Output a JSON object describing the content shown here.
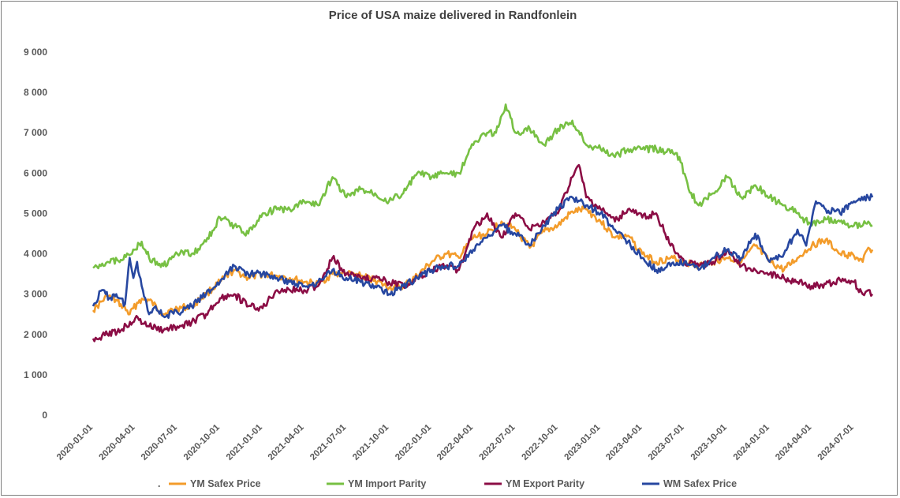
{
  "chart_data": {
    "type": "line",
    "title": "Price of USA maize delivered in Randfonlein",
    "xlabel": "",
    "ylabel": "",
    "ylim": [
      0,
      9000
    ],
    "yticks": [
      0,
      1000,
      2000,
      3000,
      4000,
      5000,
      6000,
      7000,
      8000,
      9000
    ],
    "ytick_labels": [
      "0",
      "1 000",
      "2 000",
      "3 000",
      "4 000",
      "5 000",
      "6 000",
      "7 000",
      "8 000",
      "9 000"
    ],
    "xrange": [
      "2020-01-01",
      "2024-08-15"
    ],
    "xtick_labels": [
      "2020-01-01",
      "2020-04-01",
      "2020-07-01",
      "2020-10-01",
      "2021-01-01",
      "2021-04-01",
      "2021-07-01",
      "2021-10-01",
      "2022-01-01",
      "2022-04-01",
      "2022-07-01",
      "2022-10-01",
      "2023-01-01",
      "2023-04-01",
      "2023-07-01",
      "2023-10-01",
      "2024-01-01",
      "2024-04-01",
      "2024-07-01"
    ],
    "grid": false,
    "legend_position": "bottom",
    "legend_marker": ".",
    "series": [
      {
        "name": "YM Safex Price",
        "color": "#f39c2b",
        "x": [
          "2020-01-01",
          "2020-02-01",
          "2020-03-01",
          "2020-03-20",
          "2020-04-10",
          "2020-05-01",
          "2020-06-01",
          "2020-07-01",
          "2020-08-01",
          "2020-09-01",
          "2020-10-01",
          "2020-11-01",
          "2020-12-01",
          "2021-01-01",
          "2021-02-01",
          "2021-03-01",
          "2021-04-01",
          "2021-05-01",
          "2021-06-01",
          "2021-07-01",
          "2021-08-01",
          "2021-09-01",
          "2021-10-01",
          "2021-11-01",
          "2021-12-01",
          "2022-01-01",
          "2022-02-01",
          "2022-03-01",
          "2022-04-01",
          "2022-05-01",
          "2022-06-01",
          "2022-07-01",
          "2022-08-01",
          "2022-09-01",
          "2022-10-01",
          "2022-11-01",
          "2022-12-01",
          "2023-01-01",
          "2023-02-01",
          "2023-03-01",
          "2023-04-01",
          "2023-05-01",
          "2023-06-01",
          "2023-07-01",
          "2023-08-01",
          "2023-09-01",
          "2023-10-01",
          "2023-11-01",
          "2023-12-01",
          "2024-01-01",
          "2024-02-01",
          "2024-03-01",
          "2024-04-01",
          "2024-05-01",
          "2024-06-01",
          "2024-07-01",
          "2024-07-20",
          "2024-08-01",
          "2024-08-10"
        ],
        "values": [
          2600,
          2950,
          2750,
          2500,
          2850,
          2850,
          2500,
          2650,
          2700,
          3000,
          3300,
          3600,
          3400,
          3500,
          3450,
          3400,
          3300,
          3250,
          3500,
          3500,
          3450,
          3350,
          3150,
          3200,
          3450,
          3800,
          4000,
          3900,
          4400,
          4500,
          4800,
          4600,
          4150,
          4550,
          4700,
          5050,
          5100,
          4800,
          4400,
          4450,
          4000,
          3800,
          3900,
          3800,
          3700,
          3800,
          3900,
          3800,
          4200,
          3800,
          3600,
          3900,
          4200,
          4350,
          4000,
          3950,
          3800,
          4150,
          4100
        ]
      },
      {
        "name": "YM Import Parity",
        "color": "#77c043",
        "x": [
          "2020-01-01",
          "2020-02-01",
          "2020-03-01",
          "2020-03-25",
          "2020-04-15",
          "2020-05-01",
          "2020-06-01",
          "2020-07-01",
          "2020-08-01",
          "2020-09-01",
          "2020-10-01",
          "2020-11-01",
          "2020-12-01",
          "2021-01-01",
          "2021-02-01",
          "2021-03-01",
          "2021-04-01",
          "2021-05-01",
          "2021-06-01",
          "2021-07-01",
          "2021-08-01",
          "2021-09-01",
          "2021-10-01",
          "2021-11-01",
          "2021-12-01",
          "2022-01-01",
          "2022-02-01",
          "2022-03-01",
          "2022-04-01",
          "2022-05-01",
          "2022-05-20",
          "2022-06-10",
          "2022-07-01",
          "2022-08-01",
          "2022-09-01",
          "2022-10-01",
          "2022-11-01",
          "2022-12-01",
          "2023-01-01",
          "2023-02-01",
          "2023-03-01",
          "2023-04-01",
          "2023-05-01",
          "2023-06-01",
          "2023-06-20",
          "2023-07-10",
          "2023-08-01",
          "2023-09-01",
          "2023-10-01",
          "2023-11-01",
          "2023-12-01",
          "2024-01-01",
          "2024-02-01",
          "2024-03-01",
          "2024-04-01",
          "2024-05-01",
          "2024-06-01",
          "2024-07-01",
          "2024-08-01",
          "2024-08-10"
        ],
        "values": [
          3650,
          3800,
          3850,
          4000,
          4300,
          3900,
          3700,
          4000,
          4000,
          4300,
          4900,
          4700,
          4500,
          5000,
          5100,
          5100,
          5300,
          5200,
          5900,
          5400,
          5600,
          5500,
          5300,
          5500,
          6000,
          5900,
          6000,
          6000,
          6700,
          7000,
          7000,
          7700,
          7000,
          7100,
          6700,
          7100,
          7300,
          6700,
          6600,
          6400,
          6600,
          6600,
          6600,
          6500,
          6400,
          5600,
          5200,
          5500,
          5900,
          5400,
          5700,
          5400,
          5200,
          5000,
          4700,
          4850,
          4800,
          4700,
          4800,
          4700
        ]
      },
      {
        "name": "YM Export Parity",
        "color": "#8b0d45",
        "x": [
          "2020-01-01",
          "2020-02-01",
          "2020-03-01",
          "2020-04-01",
          "2020-05-01",
          "2020-06-01",
          "2020-07-01",
          "2020-08-01",
          "2020-09-01",
          "2020-10-01",
          "2020-11-01",
          "2020-12-01",
          "2021-01-01",
          "2021-02-01",
          "2021-03-01",
          "2021-04-01",
          "2021-05-01",
          "2021-06-01",
          "2021-07-01",
          "2021-08-01",
          "2021-09-01",
          "2021-10-01",
          "2021-11-01",
          "2021-12-01",
          "2022-01-01",
          "2022-02-01",
          "2022-03-01",
          "2022-04-01",
          "2022-05-01",
          "2022-06-01",
          "2022-07-01",
          "2022-08-01",
          "2022-09-01",
          "2022-10-01",
          "2022-11-01",
          "2022-11-15",
          "2022-12-01",
          "2023-01-01",
          "2023-02-01",
          "2023-03-01",
          "2023-04-01",
          "2023-05-01",
          "2023-06-01",
          "2023-07-01",
          "2023-08-01",
          "2023-09-01",
          "2023-10-01",
          "2023-11-01",
          "2023-12-01",
          "2024-01-01",
          "2024-02-01",
          "2024-03-01",
          "2024-04-01",
          "2024-05-01",
          "2024-06-01",
          "2024-07-01",
          "2024-07-20",
          "2024-08-01",
          "2024-08-10"
        ],
        "values": [
          1900,
          2000,
          2100,
          2400,
          2200,
          2100,
          2200,
          2300,
          2500,
          2900,
          3000,
          2700,
          2650,
          3100,
          3100,
          3100,
          3200,
          3900,
          3500,
          3400,
          3400,
          3300,
          3200,
          3400,
          3600,
          3700,
          3600,
          4600,
          5000,
          4400,
          5000,
          4600,
          4800,
          5000,
          5900,
          6200,
          5400,
          5100,
          4800,
          5100,
          4900,
          5000,
          4200,
          3800,
          3700,
          3800,
          4100,
          3700,
          3600,
          3500,
          3400,
          3300,
          3200,
          3250,
          3350,
          3300,
          3000,
          3100,
          3000
        ]
      },
      {
        "name": "WM Safex Price",
        "color": "#2747a0",
        "x": [
          "2020-01-01",
          "2020-01-20",
          "2020-02-05",
          "2020-02-20",
          "2020-03-10",
          "2020-03-20",
          "2020-03-28",
          "2020-04-05",
          "2020-04-15",
          "2020-04-25",
          "2020-05-01",
          "2020-05-15",
          "2020-06-01",
          "2020-07-01",
          "2020-08-01",
          "2020-09-01",
          "2020-10-01",
          "2020-11-01",
          "2020-12-01",
          "2021-01-01",
          "2021-02-01",
          "2021-03-01",
          "2021-04-01",
          "2021-05-01",
          "2021-06-01",
          "2021-07-01",
          "2021-08-01",
          "2021-09-01",
          "2021-10-01",
          "2021-11-01",
          "2021-12-01",
          "2022-01-01",
          "2022-02-01",
          "2022-03-01",
          "2022-04-01",
          "2022-05-01",
          "2022-06-01",
          "2022-07-01",
          "2022-08-01",
          "2022-09-01",
          "2022-10-01",
          "2022-11-01",
          "2022-12-01",
          "2023-01-01",
          "2023-02-01",
          "2023-03-01",
          "2023-04-01",
          "2023-05-01",
          "2023-06-01",
          "2023-07-01",
          "2023-08-01",
          "2023-09-01",
          "2023-10-01",
          "2023-11-01",
          "2023-12-01",
          "2024-01-01",
          "2024-02-01",
          "2024-03-01",
          "2024-03-20",
          "2024-04-10",
          "2024-05-01",
          "2024-06-01",
          "2024-07-01",
          "2024-08-01",
          "2024-08-10"
        ],
        "values": [
          2700,
          3100,
          2900,
          3000,
          2750,
          3900,
          3400,
          3800,
          3200,
          2800,
          2500,
          2700,
          2450,
          2550,
          2700,
          3000,
          3300,
          3700,
          3500,
          3500,
          3400,
          3300,
          3200,
          3300,
          3600,
          3400,
          3300,
          3200,
          3000,
          3200,
          3400,
          3600,
          3700,
          3700,
          4100,
          4400,
          4700,
          4500,
          4200,
          4700,
          5100,
          5400,
          5200,
          5000,
          4600,
          4300,
          3900,
          3600,
          3700,
          3800,
          3600,
          3900,
          4100,
          3900,
          4500,
          3800,
          4000,
          4600,
          4200,
          5300,
          5100,
          5000,
          5300,
          5400,
          5400
        ]
      }
    ]
  }
}
